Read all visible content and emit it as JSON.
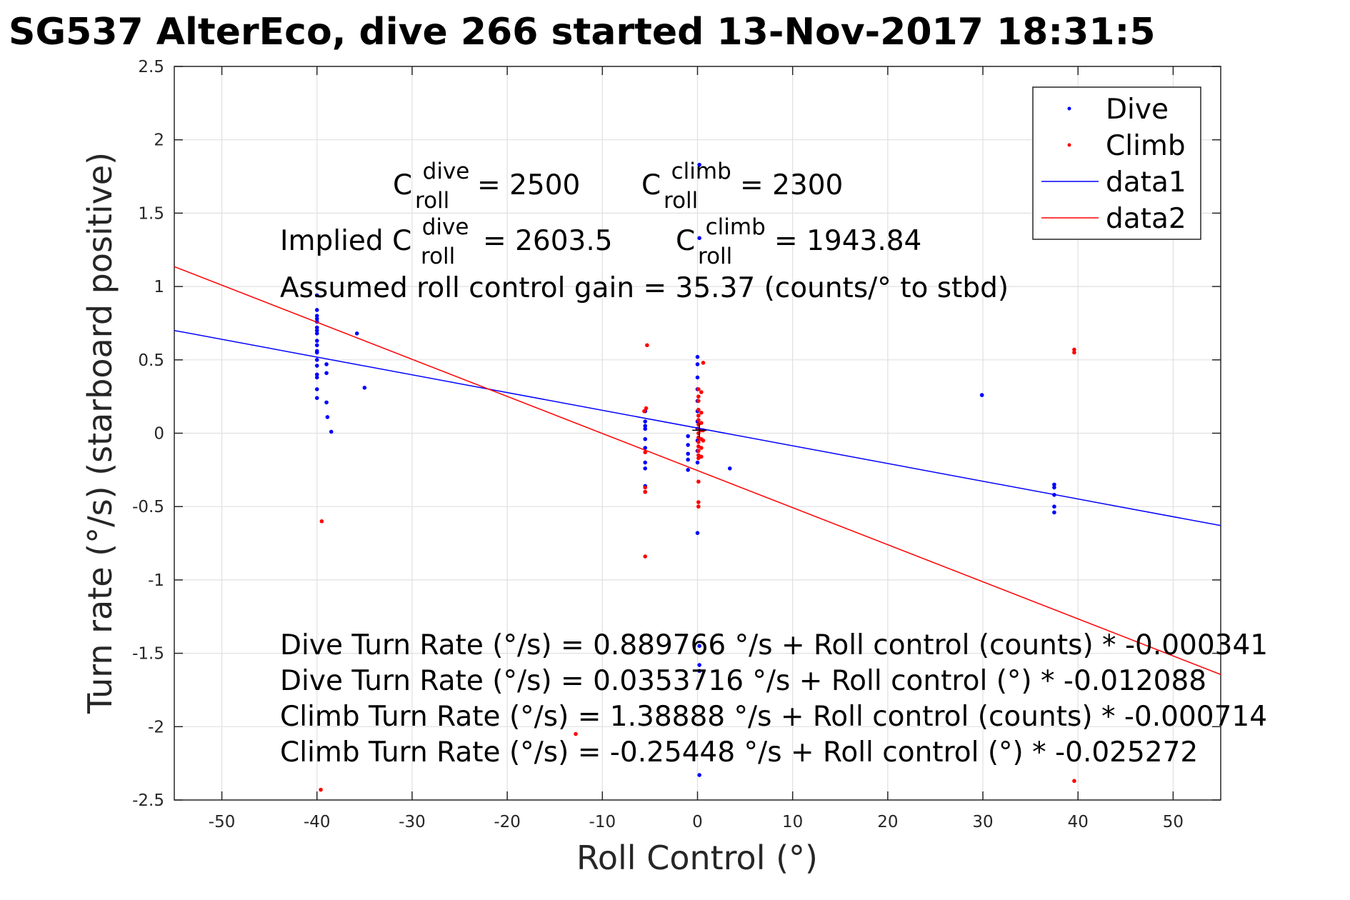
{
  "title": "SG537 AlterEco, dive 266 started 13-Nov-2017 18:31:5",
  "chart_data": {
    "type": "scatter",
    "title": "SG537 AlterEco, dive 266 started 13-Nov-2017 18:31:5",
    "xlabel": "Roll Control (°)",
    "ylabel": "Turn rate (°/s) (starboard positive)",
    "xlim": [
      -55,
      55
    ],
    "ylim": [
      -2.5,
      2.5
    ],
    "xticks": [
      -50,
      -40,
      -30,
      -20,
      -10,
      0,
      10,
      20,
      30,
      40,
      50
    ],
    "yticks": [
      2.5,
      2,
      1.5,
      1,
      0.5,
      0,
      -0.5,
      -1,
      -1.5,
      -2,
      -2.5
    ],
    "xtick_labels": [
      "-50",
      "-40",
      "-30",
      "-20",
      "-10",
      "0",
      "10",
      "20",
      "30",
      "40",
      "50"
    ],
    "ytick_labels": [
      "2.5",
      "2",
      "1.5",
      "1",
      "0.5",
      "0",
      "-0.5",
      "-1",
      "-1.5",
      "-2",
      "-2.5"
    ],
    "grid": true,
    "legend_position": "top-right",
    "series": [
      {
        "name": "Dive",
        "kind": "points",
        "color": "#0000ff",
        "points": [
          [
            -40,
            0.94
          ],
          [
            -40,
            0.84
          ],
          [
            -40,
            0.8
          ],
          [
            -40,
            0.78
          ],
          [
            -40,
            0.76
          ],
          [
            -40,
            0.72
          ],
          [
            -40,
            0.7
          ],
          [
            -40,
            0.68
          ],
          [
            -40,
            0.63
          ],
          [
            -40,
            0.6
          ],
          [
            -40,
            0.56
          ],
          [
            -40,
            0.55
          ],
          [
            -40,
            0.5
          ],
          [
            -40,
            0.46
          ],
          [
            -40,
            0.4
          ],
          [
            -40,
            0.38
          ],
          [
            -40,
            0.3
          ],
          [
            -40,
            0.24
          ],
          [
            -39,
            0.47
          ],
          [
            -39,
            0.41
          ],
          [
            -39,
            0.21
          ],
          [
            -38.9,
            0.11
          ],
          [
            -38.5,
            0.01
          ],
          [
            -35.8,
            0.68
          ],
          [
            -35,
            0.31
          ],
          [
            -5.5,
            0.15
          ],
          [
            -5.5,
            0.08
          ],
          [
            -5.5,
            0.05
          ],
          [
            -5.5,
            0.03
          ],
          [
            -5.5,
            -0.04
          ],
          [
            -5.5,
            -0.1
          ],
          [
            -5.5,
            -0.2
          ],
          [
            -5.5,
            -0.24
          ],
          [
            -5.5,
            -0.36
          ],
          [
            -5.5,
            -0.4
          ],
          [
            -1,
            -0.02
          ],
          [
            -1,
            -0.08
          ],
          [
            -1,
            -0.14
          ],
          [
            -1,
            -0.18
          ],
          [
            -1,
            -0.25
          ],
          [
            0,
            0.52
          ],
          [
            0,
            0.47
          ],
          [
            0,
            0.38
          ],
          [
            0,
            0.3
          ],
          [
            0,
            0.22
          ],
          [
            0,
            0.15
          ],
          [
            0,
            0.08
          ],
          [
            0,
            0.03
          ],
          [
            0,
            -0.05
          ],
          [
            0,
            -0.12
          ],
          [
            0,
            -0.2
          ],
          [
            0,
            -0.68
          ],
          [
            0.2,
            1.83
          ],
          [
            0.2,
            1.33
          ],
          [
            0.2,
            -1.45
          ],
          [
            0.2,
            -1.58
          ],
          [
            0.2,
            -1.62
          ],
          [
            0.2,
            -2.33
          ],
          [
            3.4,
            -0.24
          ],
          [
            29.9,
            0.26
          ],
          [
            37.5,
            -0.35
          ],
          [
            37.5,
            -0.37
          ],
          [
            37.5,
            -0.42
          ],
          [
            37.5,
            -0.5
          ],
          [
            37.5,
            -0.54
          ]
        ]
      },
      {
        "name": "Climb",
        "kind": "points",
        "color": "#ff0000",
        "points": [
          [
            -39.5,
            -0.6
          ],
          [
            -39.6,
            -2.43
          ],
          [
            -12.8,
            -2.05
          ],
          [
            -5.3,
            0.6
          ],
          [
            -5.4,
            0.17
          ],
          [
            -5.6,
            0.15
          ],
          [
            -5.5,
            -0.13
          ],
          [
            -5.5,
            -0.37
          ],
          [
            -5.5,
            -0.4
          ],
          [
            -5.5,
            -0.84
          ],
          [
            0.1,
            0.3
          ],
          [
            0.1,
            0.25
          ],
          [
            0.1,
            0.22
          ],
          [
            0.1,
            0.16
          ],
          [
            0.1,
            0.12
          ],
          [
            0.1,
            0.09
          ],
          [
            0.1,
            0.06
          ],
          [
            0.1,
            0.03
          ],
          [
            0.1,
            0.0
          ],
          [
            0.1,
            -0.03
          ],
          [
            0.1,
            -0.06
          ],
          [
            0.1,
            -0.09
          ],
          [
            0.1,
            -0.12
          ],
          [
            0.1,
            -0.15
          ],
          [
            0.1,
            -0.17
          ],
          [
            0.1,
            -0.33
          ],
          [
            0.1,
            -0.47
          ],
          [
            0.1,
            -0.5
          ],
          [
            0.4,
            0.28
          ],
          [
            0.4,
            0.14
          ],
          [
            0.4,
            0.07
          ],
          [
            0.4,
            0.02
          ],
          [
            0.4,
            -0.04
          ],
          [
            0.4,
            -0.1
          ],
          [
            0.4,
            -0.16
          ],
          [
            0.6,
            0.48
          ],
          [
            0.6,
            0.02
          ],
          [
            0.6,
            -0.05
          ],
          [
            39.6,
            0.57
          ],
          [
            39.6,
            0.55
          ],
          [
            39.6,
            -2.37
          ]
        ]
      },
      {
        "name": "data1",
        "kind": "line",
        "color": "#0000ff",
        "x": [
          -55,
          55
        ],
        "y": [
          0.7002,
          -0.6296
        ]
      },
      {
        "name": "data2",
        "kind": "line",
        "color": "#ff0000",
        "x": [
          -55,
          55
        ],
        "y": [
          1.1355,
          -1.6445
        ]
      }
    ],
    "annotations": {
      "c_roll_row": {
        "dive_base": "C",
        "dive_sup": "dive",
        "dive_sub": "roll",
        "dive_value": "= 2500",
        "climb_base": "C",
        "climb_sup": "climb",
        "climb_sub": "roll",
        "climb_value": "= 2300"
      },
      "implied_row": {
        "prefix": "Implied C",
        "dive_sup": "dive",
        "dive_sub": "roll",
        "dive_value": "= 2603.5",
        "climb_base": "C",
        "climb_sup": "climb",
        "climb_sub": "roll",
        "climb_value": "= 1943.84"
      },
      "gain": "Assumed roll control gain = 35.37 (counts/° to stbd)",
      "fit_lines": [
        "Dive Turn Rate (°/s) = 0.889766 °/s + Roll control (counts) * -0.000341",
        "Dive Turn Rate (°/s) = 0.0353716 °/s + Roll control (°) * -0.012088",
        "Climb Turn Rate (°/s) = 1.38888 °/s + Roll control (counts) * -0.000714",
        "Climb Turn Rate (°/s) = -0.25448 °/s + Roll control (°) * -0.025272"
      ]
    }
  }
}
